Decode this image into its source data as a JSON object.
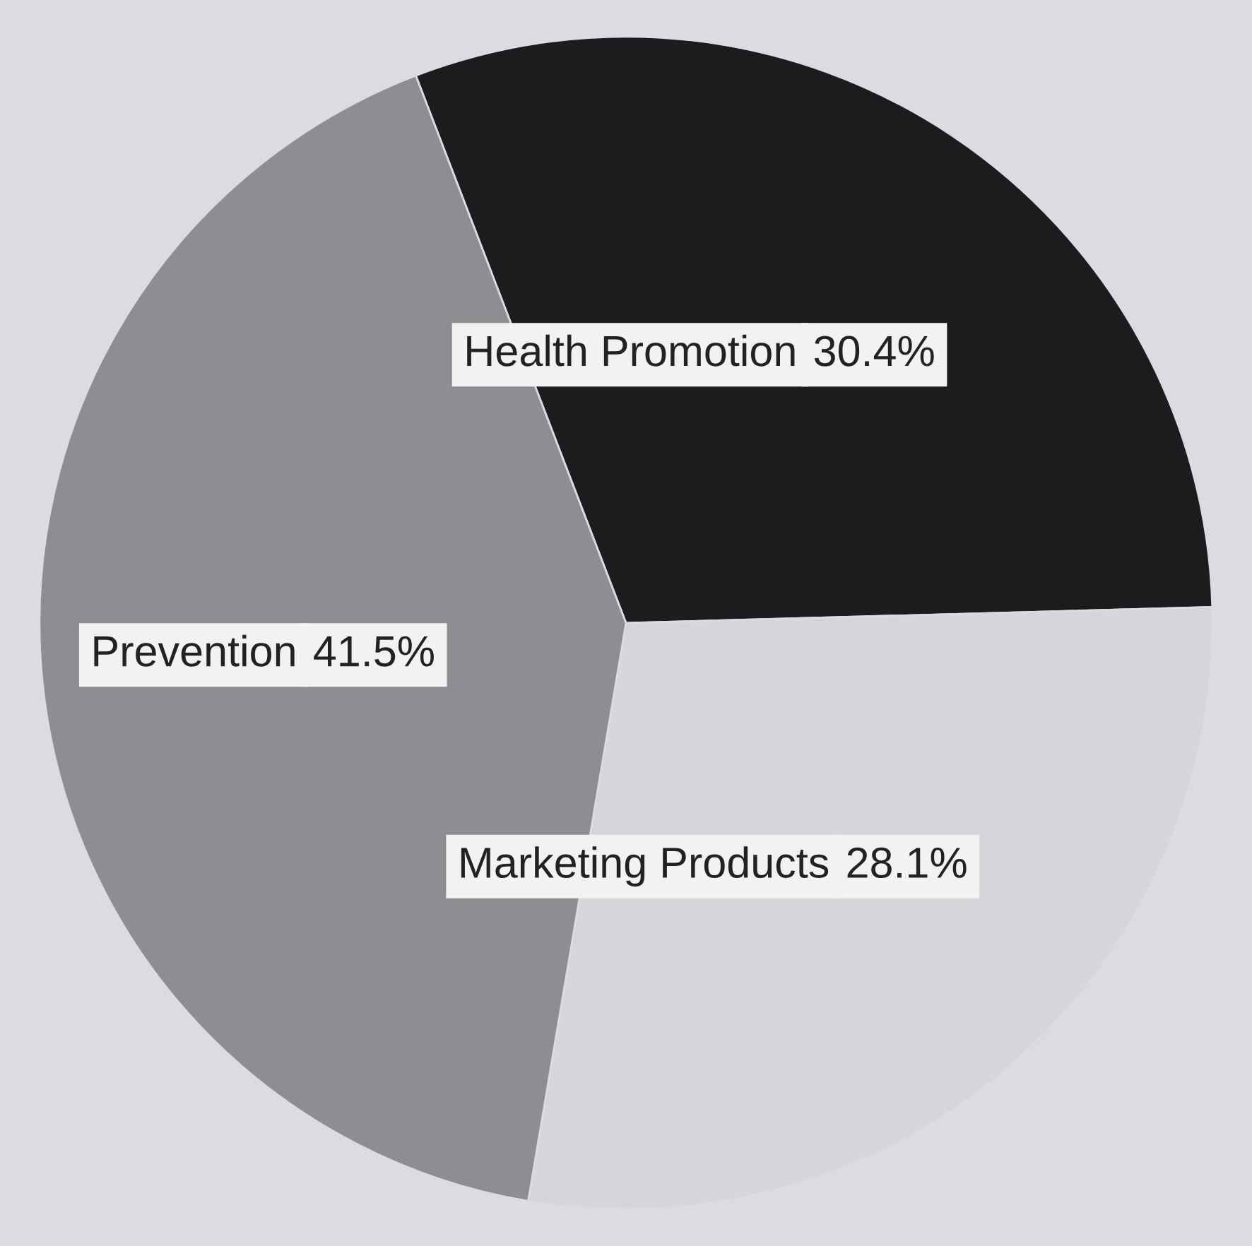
{
  "chart_data": {
    "type": "pie",
    "categories": [
      "Health Promotion",
      "Marketing Products",
      "Prevention"
    ],
    "values": [
      30.4,
      28.1,
      41.5
    ],
    "value_labels": [
      "30.4%",
      "28.1%",
      "41.5%"
    ],
    "colors": [
      "#1c1c1e",
      "#d6d6da",
      "#8e8e92"
    ],
    "legend": false
  }
}
